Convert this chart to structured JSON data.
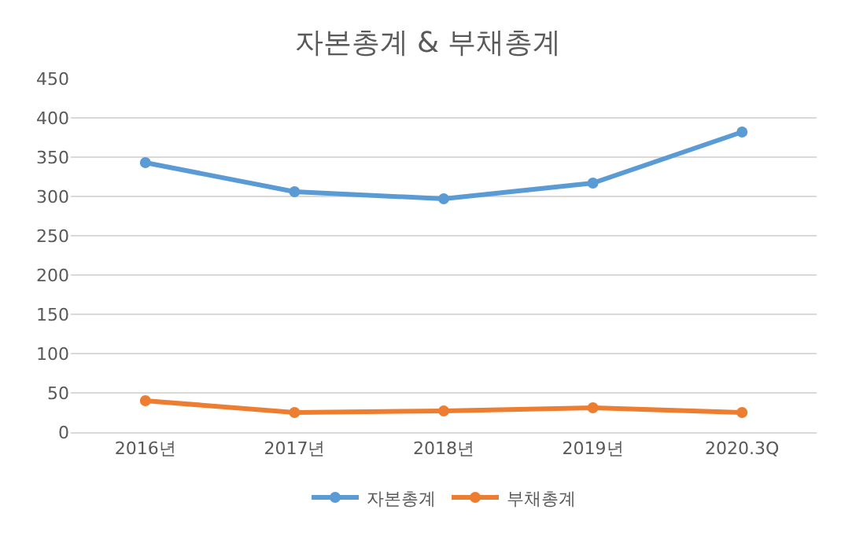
{
  "chart_data": {
    "type": "line",
    "title": "자본총계 & 부채총계",
    "categories": [
      "2016년",
      "2017년",
      "2018년",
      "2019년",
      "2020.3Q"
    ],
    "series": [
      {
        "name": "자본총계",
        "color": "#5b9bd5",
        "values": [
          343,
          306,
          297,
          317,
          382
        ]
      },
      {
        "name": "부채총계",
        "color": "#ed7d31",
        "values": [
          40,
          25,
          27,
          31,
          25
        ]
      }
    ],
    "ylim": [
      0,
      450
    ],
    "yticks": [
      0,
      50,
      100,
      150,
      200,
      250,
      300,
      350,
      400,
      450
    ],
    "grid": "y",
    "legend": "bottom",
    "marker": "circle",
    "line_style": "solid"
  }
}
